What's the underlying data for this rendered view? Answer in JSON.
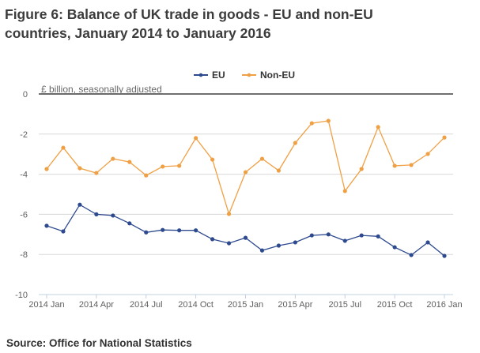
{
  "title": "Figure 6: Balance of UK trade in goods - EU and non-EU countries, January 2014 to January 2016",
  "title_lines": [
    "Figure 6: Balance of UK trade in goods - EU and non-EU",
    "countries, January 2014 to January 2016"
  ],
  "source": "Source: Office for National Statistics",
  "chart_data": {
    "type": "line",
    "title": "Figure 6: Balance of UK trade in goods - EU and non-EU countries, January 2014 to January 2016",
    "ylabel": "£ billion, seasonally adjusted",
    "xlabel": "",
    "ylim": [
      -10,
      0
    ],
    "yticks": [
      0,
      -2,
      -4,
      -6,
      -8,
      -10
    ],
    "ytick_labels": [
      "0",
      "-2",
      "-4",
      "-6",
      "-8",
      "-10"
    ],
    "xtick_labels": [
      "2014 Jan",
      "2014 Apr",
      "2014 Jul",
      "2014 Oct",
      "2015 Jan",
      "2015 Apr",
      "2015 Jul",
      "2015 Oct",
      "2016 Jan"
    ],
    "xtick_index": [
      0,
      3,
      6,
      9,
      12,
      15,
      18,
      21,
      24
    ],
    "grid": true,
    "legend_position": "top-center",
    "x": [
      "2014 Jan",
      "2014 Feb",
      "2014 Mar",
      "2014 Apr",
      "2014 May",
      "2014 Jun",
      "2014 Jul",
      "2014 Aug",
      "2014 Sep",
      "2014 Oct",
      "2014 Nov",
      "2014 Dec",
      "2015 Jan",
      "2015 Feb",
      "2015 Mar",
      "2015 Apr",
      "2015 May",
      "2015 Jun",
      "2015 Jul",
      "2015 Aug",
      "2015 Sep",
      "2015 Oct",
      "2015 Nov",
      "2015 Dec",
      "2016 Jan"
    ],
    "series": [
      {
        "name": "EU",
        "color": "#2e4a8f",
        "values": [
          -6.57,
          -6.85,
          -5.52,
          -6.0,
          -6.06,
          -6.45,
          -6.9,
          -6.78,
          -6.8,
          -6.8,
          -7.24,
          -7.44,
          -7.17,
          -7.8,
          -7.56,
          -7.4,
          -7.05,
          -7.0,
          -7.32,
          -7.05,
          -7.1,
          -7.64,
          -8.03,
          -7.4,
          -8.07
        ]
      },
      {
        "name": "Non-EU",
        "color": "#f0a044",
        "values": [
          -3.74,
          -2.68,
          -3.7,
          -3.94,
          -3.23,
          -3.39,
          -4.06,
          -3.62,
          -3.58,
          -2.2,
          -3.27,
          -5.98,
          -3.9,
          -3.23,
          -3.82,
          -2.44,
          -1.46,
          -1.34,
          -4.84,
          -3.74,
          -1.65,
          -3.58,
          -3.54,
          -2.99,
          -2.17
        ]
      }
    ]
  }
}
